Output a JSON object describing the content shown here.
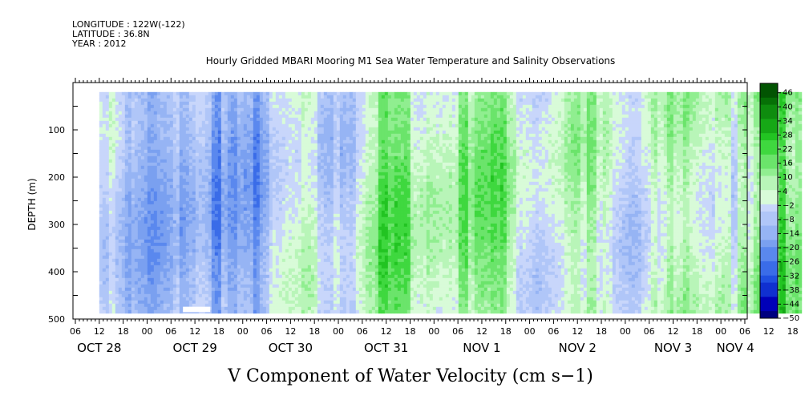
{
  "header": {
    "longitude": "LONGITUDE : 122W(-122)",
    "latitude": "LATITUDE : 36.8N",
    "year": "YEAR : 2012"
  },
  "chart_data": {
    "type": "heatmap",
    "title": "Hourly Gridded MBARI Mooring M1 Sea Water Temperature and Salinity Observations",
    "xlabel": "V Component of Water Velocity (cm s−1)",
    "ylabel": "DEPTH (m)",
    "ylim": [
      500,
      0
    ],
    "y_ticks": [
      "100",
      "200",
      "300",
      "400",
      "500"
    ],
    "x_hour_ticks": [
      "06",
      "12",
      "18",
      "00",
      "06",
      "12",
      "18",
      "00",
      "06",
      "12",
      "18",
      "00",
      "06",
      "12",
      "18",
      "00",
      "06",
      "12",
      "18",
      "00",
      "06",
      "12",
      "18",
      "00",
      "06",
      "12",
      "18",
      "00",
      "06",
      "12",
      "18",
      "00",
      "06"
    ],
    "x_day_labels": [
      "OCT 28",
      "OCT 29",
      "OCT 30",
      "OCT 31",
      "NOV  1",
      "NOV  2",
      "NOV  3",
      "NOV 4"
    ],
    "colorbar": {
      "labels": [
        "46",
        "40",
        "34",
        "28",
        "22",
        "16",
        "10",
        "4",
        "−2",
        "−8",
        "−14",
        "−20",
        "−26",
        "−32",
        "−38",
        "−44",
        "−50"
      ],
      "min": -50,
      "max": 50,
      "step": 3
    },
    "colors": {
      "neg": [
        "#000080",
        "#0000b8",
        "#1030d0",
        "#2050e0",
        "#3a6ce8",
        "#5a88ee",
        "#7aa0f0",
        "#96b4f4",
        "#b0c6f8",
        "#c8d6fb"
      ],
      "pos": [
        "#d8fbd8",
        "#b8f5b8",
        "#90ee90",
        "#6be46b",
        "#3fd83f",
        "#22c422",
        "#16a816",
        "#0e8c0e",
        "#067006",
        "#025402"
      ]
    },
    "observations": {
      "time_start": "2012-10-28T12:00",
      "time_end": "2012-11-04T14:00",
      "depth_top_m": 20,
      "depth_bottom_m": 485
    },
    "description": "V velocity field: predominantly weak negative (blue/lavender, -2 to -20 cm/s) Oct 28-30, predominantly positive (green, 4 to 28 cm/s) Oct 30 - Nov 4 with alternating blue vertical bands."
  }
}
